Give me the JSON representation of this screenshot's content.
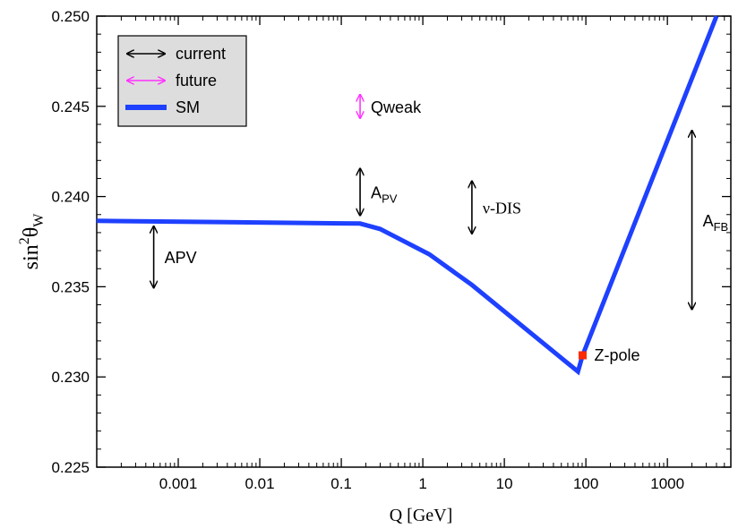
{
  "chart_data": {
    "type": "line",
    "xlabel": "Q [GeV]",
    "ylabel": {
      "main": "sin",
      "sup": "2",
      "theta": "θ",
      "sub": "W"
    },
    "x_scale": "log",
    "xlim": [
      0.0001,
      6000
    ],
    "ylim": [
      0.225,
      0.25
    ],
    "x_ticks": [
      {
        "value": 0.001,
        "label": "0.001"
      },
      {
        "value": 0.01,
        "label": "0.01"
      },
      {
        "value": 0.1,
        "label": "0.1"
      },
      {
        "value": 1,
        "label": "1"
      },
      {
        "value": 10,
        "label": "10"
      },
      {
        "value": 100,
        "label": "100"
      },
      {
        "value": 1000,
        "label": "1000"
      }
    ],
    "y_ticks": [
      {
        "value": 0.225,
        "label": "0.225"
      },
      {
        "value": 0.23,
        "label": "0.230"
      },
      {
        "value": 0.235,
        "label": "0.235"
      },
      {
        "value": 0.24,
        "label": "0.240"
      },
      {
        "value": 0.245,
        "label": "0.245"
      },
      {
        "value": 0.25,
        "label": "0.250"
      }
    ],
    "legend": {
      "placement": "top-left",
      "entries": [
        {
          "label": "current",
          "style": "double-arrow",
          "color": "#000000"
        },
        {
          "label": "future",
          "style": "double-arrow",
          "color": "#ff33ff"
        },
        {
          "label": "SM",
          "style": "line",
          "color": "#1e40ff"
        }
      ]
    },
    "series": [
      {
        "name": "SM",
        "color": "#1e40ff",
        "points": [
          [
            0.0001,
            0.23865
          ],
          [
            0.17,
            0.2385
          ],
          [
            0.3,
            0.2382
          ],
          [
            1.2,
            0.2368
          ],
          [
            4,
            0.2351
          ],
          [
            80,
            0.2303
          ],
          [
            91.2,
            0.2312
          ],
          [
            4000,
            0.25
          ]
        ]
      }
    ],
    "annotations": [
      {
        "label": "APV",
        "sub": "",
        "x": 0.0005,
        "y_low": 0.2349,
        "y_high": 0.2384,
        "color": "#000000",
        "label_style": "sans"
      },
      {
        "label": "A",
        "sub": "PV",
        "x": 0.17,
        "y_low": 0.2389,
        "y_high": 0.2416,
        "color": "#000000",
        "label_style": "sans"
      },
      {
        "label": "ν-DIS",
        "sub": "",
        "x": 4,
        "y_low": 0.2379,
        "y_high": 0.2409,
        "color": "#000000",
        "label_style": "serif"
      },
      {
        "label": "A",
        "sub": "FB",
        "x": 2000,
        "y_low": 0.2337,
        "y_high": 0.2437,
        "color": "#000000",
        "label_style": "sans"
      },
      {
        "label": "Qweak",
        "sub": "",
        "x": 0.17,
        "y_low": 0.2443,
        "y_high": 0.2457,
        "color": "#ff33ff",
        "label_style": "sans"
      }
    ],
    "points": [
      {
        "label": "Z-pole",
        "x": 91.2,
        "y": 0.2312,
        "color": "#ff2a00"
      }
    ],
    "grid": false
  }
}
